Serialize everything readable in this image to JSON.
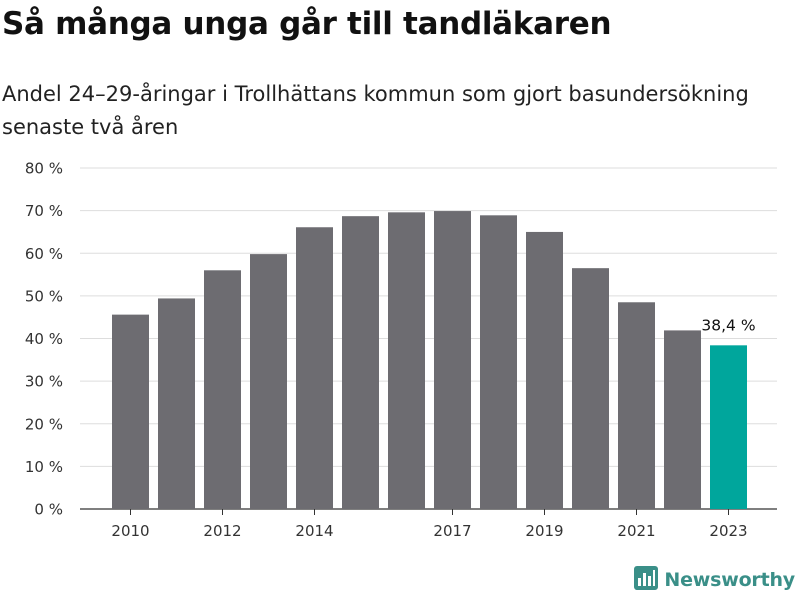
{
  "title": "Så många unga går till tandläkaren",
  "subtitle": "Andel 24–29-åringar i Trollhättans kommun som gjort basundersökning senaste två åren",
  "brand": {
    "name": "Newsworthy",
    "icon": "newsworthy-logo-icon"
  },
  "colors": {
    "bar": "#6d6c71",
    "highlight": "#00a69c",
    "gridline": "#dddddd",
    "axis": "#333333",
    "brand": "#3a8f88"
  },
  "chart_data": {
    "type": "bar",
    "categories": [
      "2010",
      "2011",
      "2012",
      "2013",
      "2014",
      "2015",
      "2016",
      "2017",
      "2018",
      "2019",
      "2020",
      "2021",
      "2022",
      "2023"
    ],
    "values": [
      45.6,
      49.4,
      56.0,
      59.8,
      66.1,
      68.7,
      69.6,
      69.9,
      68.9,
      65.0,
      56.5,
      48.5,
      41.9,
      38.4
    ],
    "x_tick_labels": [
      "2010",
      "",
      "2012",
      "",
      "2014",
      "",
      "",
      "2017",
      "",
      "2019",
      "",
      "2021",
      "",
      "2023"
    ],
    "y_ticks": [
      0,
      10,
      20,
      30,
      40,
      50,
      60,
      70,
      80
    ],
    "y_tick_labels": [
      "0 %",
      "10 %",
      "20 %",
      "30 %",
      "40 %",
      "50 %",
      "60 %",
      "70 %",
      "80 %"
    ],
    "ylim": [
      0,
      80
    ],
    "grid": true,
    "highlight_index": 13,
    "annotations": [
      {
        "index": 13,
        "text": "38,4 %"
      }
    ],
    "xlabel": "",
    "ylabel": ""
  }
}
